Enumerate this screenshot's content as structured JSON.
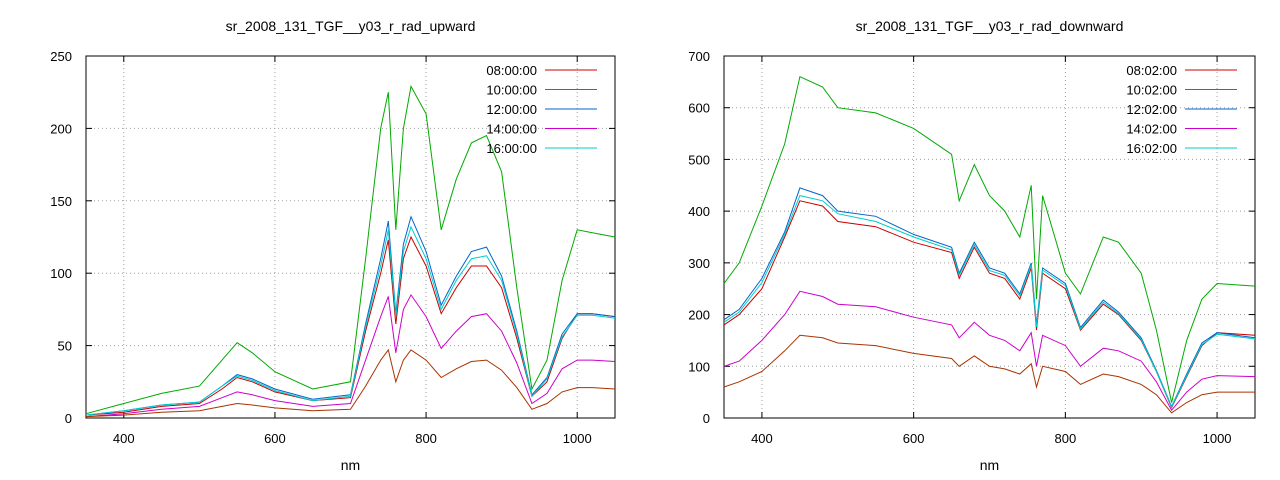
{
  "chart_data": [
    {
      "type": "line",
      "title": "sr_2008_131_TGF__y03_r_rad_upward",
      "xlabel": "nm",
      "ylabel": "",
      "xlim": [
        350,
        1050
      ],
      "ylim": [
        0,
        250
      ],
      "xticks": [
        400,
        600,
        800,
        1000
      ],
      "yticks": [
        0,
        50,
        100,
        150,
        200,
        250
      ],
      "grid": true,
      "legend_position": "top-right",
      "x": [
        350,
        400,
        450,
        500,
        530,
        550,
        570,
        600,
        650,
        700,
        720,
        740,
        750,
        760,
        770,
        780,
        800,
        820,
        840,
        860,
        880,
        900,
        920,
        940,
        960,
        980,
        1000,
        1020,
        1050
      ],
      "series": [
        {
          "name": "08:00:00",
          "color": "#cc0000",
          "values": [
            2,
            4,
            8,
            10,
            20,
            28,
            25,
            18,
            12,
            14,
            60,
            100,
            123,
            65,
            110,
            125,
            105,
            72,
            90,
            105,
            105,
            90,
            55,
            15,
            25,
            55,
            72,
            72,
            70
          ]
        },
        {
          "name": "10:00:00",
          "color": "#00aa00",
          "values": [
            3,
            10,
            17,
            22,
            40,
            52,
            45,
            32,
            20,
            25,
            110,
            200,
            225,
            130,
            200,
            229,
            210,
            130,
            165,
            190,
            195,
            170,
            90,
            20,
            40,
            95,
            130,
            128,
            125
          ]
        },
        {
          "name": "12:00:00",
          "color": "#0066cc",
          "values": [
            2,
            5,
            9,
            11,
            22,
            30,
            27,
            20,
            13,
            16,
            65,
            110,
            136,
            72,
            120,
            139,
            115,
            78,
            98,
            115,
            118,
            98,
            60,
            16,
            28,
            58,
            72,
            72,
            70
          ]
        },
        {
          "name": "14:00:00",
          "color": "#cc00cc",
          "values": [
            1,
            3,
            6,
            8,
            14,
            18,
            16,
            12,
            8,
            10,
            40,
            70,
            84,
            45,
            75,
            85,
            70,
            48,
            60,
            70,
            72,
            60,
            38,
            10,
            17,
            34,
            40,
            40,
            39
          ]
        },
        {
          "name": "16:00:00",
          "color": "#00cccc",
          "values": [
            2,
            5,
            9,
            11,
            22,
            29,
            26,
            19,
            12,
            15,
            63,
            105,
            130,
            70,
            115,
            132,
            110,
            75,
            95,
            110,
            112,
            95,
            58,
            15,
            27,
            56,
            71,
            71,
            69
          ]
        },
        {
          "name": "",
          "color": "#aa3300",
          "values": [
            1,
            2,
            4,
            5,
            8,
            10,
            9,
            7,
            5,
            6,
            22,
            40,
            47,
            25,
            40,
            47,
            40,
            28,
            34,
            39,
            40,
            33,
            21,
            6,
            10,
            18,
            21,
            21,
            20
          ]
        }
      ]
    },
    {
      "type": "line",
      "title": "sr_2008_131_TGF__y03_r_rad_downward",
      "xlabel": "nm",
      "ylabel": "",
      "xlim": [
        350,
        1050
      ],
      "ylim": [
        0,
        700
      ],
      "xticks": [
        400,
        600,
        800,
        1000
      ],
      "yticks": [
        0,
        100,
        200,
        300,
        400,
        500,
        600,
        700
      ],
      "grid": true,
      "legend_position": "top-right",
      "x": [
        350,
        370,
        400,
        430,
        450,
        480,
        500,
        550,
        600,
        650,
        660,
        680,
        700,
        720,
        740,
        755,
        762,
        770,
        800,
        820,
        850,
        870,
        900,
        920,
        940,
        960,
        980,
        1000,
        1050
      ],
      "series": [
        {
          "name": "08:02:00",
          "color": "#cc0000",
          "values": [
            180,
            200,
            250,
            350,
            420,
            410,
            380,
            370,
            340,
            320,
            270,
            330,
            280,
            270,
            230,
            290,
            170,
            280,
            250,
            170,
            220,
            200,
            150,
            90,
            20,
            80,
            140,
            165,
            160
          ]
        },
        {
          "name": "10:02:00",
          "color": "#00aa00",
          "values": [
            260,
            300,
            410,
            530,
            660,
            640,
            600,
            590,
            560,
            510,
            420,
            490,
            430,
            400,
            350,
            450,
            230,
            430,
            280,
            240,
            350,
            340,
            280,
            170,
            30,
            150,
            230,
            260,
            255
          ]
        },
        {
          "name": "12:02:00",
          "color": "#0066cc",
          "values": [
            190,
            210,
            270,
            360,
            445,
            430,
            400,
            390,
            355,
            330,
            280,
            340,
            290,
            280,
            240,
            300,
            180,
            290,
            260,
            175,
            228,
            205,
            155,
            92,
            22,
            85,
            145,
            165,
            155
          ]
        },
        {
          "name": "14:02:00",
          "color": "#cc00cc",
          "values": [
            100,
            110,
            150,
            200,
            245,
            235,
            220,
            215,
            195,
            180,
            155,
            185,
            160,
            150,
            130,
            165,
            100,
            160,
            140,
            100,
            135,
            130,
            110,
            70,
            15,
            50,
            75,
            82,
            80
          ]
        },
        {
          "name": "16:02:00",
          "color": "#00cccc",
          "values": [
            185,
            205,
            262,
            355,
            430,
            420,
            395,
            380,
            350,
            325,
            276,
            335,
            285,
            276,
            236,
            296,
            176,
            286,
            256,
            172,
            224,
            202,
            152,
            90,
            21,
            82,
            142,
            162,
            153
          ]
        },
        {
          "name": "",
          "color": "#aa3300",
          "values": [
            60,
            70,
            90,
            130,
            160,
            155,
            145,
            140,
            125,
            115,
            100,
            120,
            100,
            95,
            85,
            105,
            60,
            100,
            90,
            65,
            85,
            80,
            65,
            45,
            10,
            30,
            45,
            50,
            50
          ]
        }
      ]
    }
  ]
}
